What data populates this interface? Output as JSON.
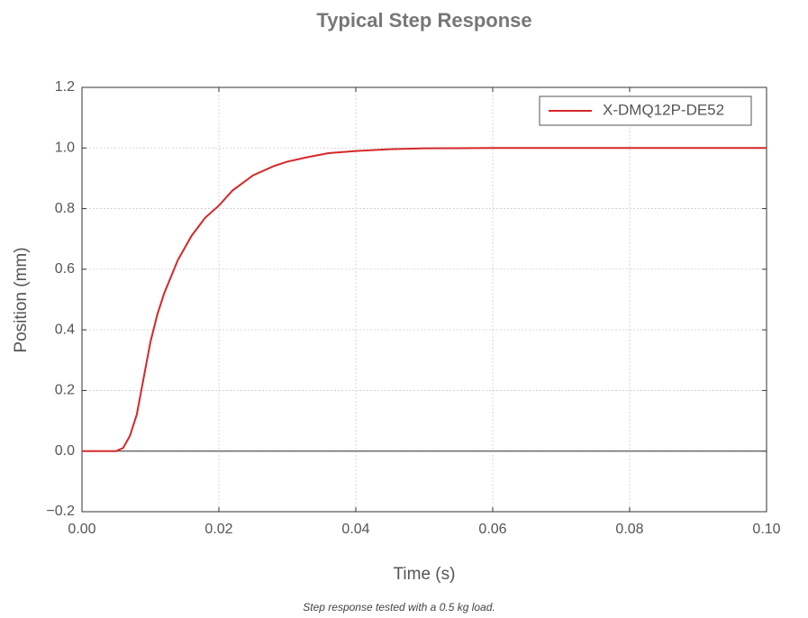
{
  "chart_data": {
    "type": "line",
    "title": "Typical Step Response",
    "xlabel": "Time (s)",
    "ylabel": "Position (mm)",
    "note": "Step response tested with a 0.5 kg load.",
    "x": [
      0,
      0.005,
      0.006,
      0.007,
      0.008,
      0.009,
      0.01,
      0.011,
      0.012,
      0.014,
      0.016,
      0.018,
      0.02,
      0.022,
      0.025,
      0.028,
      0.03,
      0.033,
      0.036,
      0.04,
      0.045,
      0.05,
      0.06,
      0.08,
      0.1
    ],
    "series": [
      {
        "name": "X-DMQ12P-DE52",
        "color": "#d62728",
        "values": [
          0,
          0,
          0.01,
          0.05,
          0.12,
          0.24,
          0.36,
          0.45,
          0.52,
          0.63,
          0.71,
          0.77,
          0.81,
          0.86,
          0.91,
          0.94,
          0.955,
          0.97,
          0.983,
          0.99,
          0.996,
          0.999,
          1,
          1,
          1
        ]
      }
    ],
    "xlim": [
      0,
      0.1
    ],
    "ylim": [
      -0.2,
      1.2
    ],
    "xticks": [
      {
        "value": 0,
        "label": "0.00"
      },
      {
        "value": 0.02,
        "label": "0.02"
      },
      {
        "value": 0.04,
        "label": "0.04"
      },
      {
        "value": 0.06,
        "label": "0.06"
      },
      {
        "value": 0.08,
        "label": "0.08"
      },
      {
        "value": 0.1,
        "label": "0.10"
      }
    ],
    "yticks": [
      {
        "value": -0.2,
        "label": "−0.2"
      },
      {
        "value": 0,
        "label": "0.0"
      },
      0.2,
      0.4,
      0.6,
      0.8,
      {
        "value": 1,
        "label": "1.0"
      },
      1.2
    ],
    "grid": true,
    "legend": "upper right"
  }
}
